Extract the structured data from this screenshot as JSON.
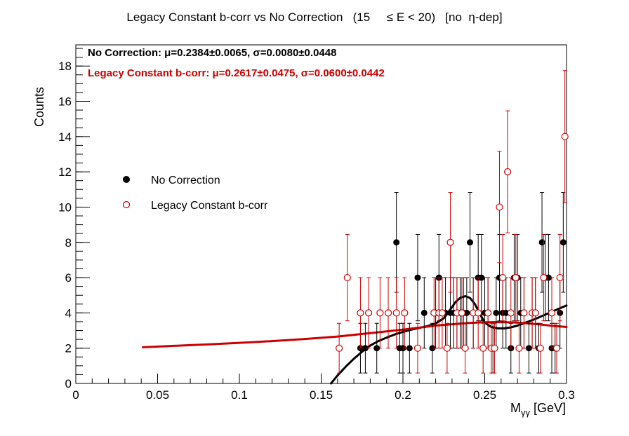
{
  "chart_data": {
    "type": "scatter",
    "title": "Legacy Constant b-corr vs No Correction   (15     ≤ E < 20)   [no  η-dep]",
    "xlabel": "Mγγ [GeV]",
    "xlabel_main": "M",
    "xlabel_sub": "γγ",
    "xlabel_unit": " [GeV]",
    "ylabel": "Counts",
    "xlim": [
      0,
      0.3
    ],
    "ylim": [
      0,
      19.2
    ],
    "grid": false,
    "legend_position": "middle-left",
    "x_ticks": [
      0,
      0.05,
      0.1,
      0.15,
      0.2,
      0.25,
      0.3
    ],
    "x_tick_labels": [
      "0",
      "0.05",
      "0.1",
      "0.15",
      "0.2",
      "0.25",
      "0.3"
    ],
    "y_ticks": [
      0,
      2,
      4,
      6,
      8,
      10,
      12,
      14,
      16,
      18
    ],
    "y_tick_labels": [
      "0",
      "2",
      "4",
      "6",
      "8",
      "10",
      "12",
      "14",
      "16",
      "18"
    ],
    "annotations": [
      {
        "text": "No Correction: μ=0.2384±0.0065, σ=0.0080±0.0448",
        "color": "#000000"
      },
      {
        "text": "Legacy Constant b-corr: μ=0.2617±0.0475, σ=0.0600±0.0442",
        "color": "#cc0000"
      }
    ],
    "series": [
      {
        "name": "No Correction",
        "color": "#000000",
        "marker": "filled-circle",
        "x": [
          0.174,
          0.177,
          0.184,
          0.196,
          0.198,
          0.2,
          0.204,
          0.209,
          0.213,
          0.218,
          0.22,
          0.222,
          0.226,
          0.229,
          0.231,
          0.233,
          0.235,
          0.237,
          0.239,
          0.241,
          0.243,
          0.246,
          0.248,
          0.25,
          0.252,
          0.255,
          0.257,
          0.259,
          0.261,
          0.263,
          0.266,
          0.268,
          0.27,
          0.272,
          0.274,
          0.277,
          0.279,
          0.281,
          0.283,
          0.285,
          0.287,
          0.289,
          0.291,
          0.293,
          0.296,
          0.298
        ],
        "y": [
          2,
          2,
          2,
          8,
          2,
          2,
          2,
          6,
          4,
          2,
          4,
          6,
          4,
          4,
          4,
          4,
          4,
          4,
          4,
          8,
          4,
          6,
          6,
          4,
          4,
          2,
          4,
          6,
          4,
          4,
          2,
          6,
          6,
          4,
          4,
          2,
          4,
          4,
          2,
          8,
          6,
          6,
          2,
          2,
          4,
          8
        ],
        "yerr": [
          1.41,
          1.41,
          1.41,
          2.83,
          1.41,
          1.41,
          1.41,
          2.45,
          2.0,
          1.41,
          2.0,
          2.45,
          2.0,
          2.0,
          2.0,
          2.0,
          2.0,
          2.0,
          2.0,
          2.83,
          2.0,
          2.45,
          2.45,
          2.0,
          2.0,
          1.41,
          2.0,
          2.45,
          2.0,
          2.0,
          1.41,
          2.45,
          2.45,
          2.0,
          2.0,
          1.41,
          2.0,
          2.0,
          1.41,
          2.83,
          2.45,
          2.45,
          1.41,
          1.41,
          2.0,
          2.83
        ]
      },
      {
        "name": "Legacy Constant b-corr",
        "color": "#cc0000",
        "marker": "open-circle",
        "x": [
          0.161,
          0.166,
          0.174,
          0.179,
          0.186,
          0.191,
          0.196,
          0.201,
          0.209,
          0.219,
          0.222,
          0.224,
          0.227,
          0.229,
          0.233,
          0.236,
          0.238,
          0.243,
          0.246,
          0.249,
          0.252,
          0.254,
          0.256,
          0.259,
          0.261,
          0.264,
          0.266,
          0.269,
          0.271,
          0.274,
          0.279,
          0.281,
          0.284,
          0.286,
          0.291,
          0.294,
          0.296,
          0.299
        ],
        "y": [
          2,
          6,
          4,
          4,
          4,
          4,
          4,
          4,
          2,
          4,
          4,
          4,
          2,
          8,
          4,
          4,
          2,
          4,
          4,
          2,
          4,
          2,
          2,
          10,
          6,
          12,
          4,
          6,
          2,
          4,
          4,
          4,
          2,
          6,
          4,
          2,
          6,
          14
        ],
        "yerr": [
          1.41,
          2.45,
          2.0,
          2.0,
          2.0,
          2.0,
          2.0,
          2.0,
          1.41,
          2.0,
          2.0,
          2.0,
          1.41,
          2.83,
          2.0,
          2.0,
          1.41,
          2.0,
          2.0,
          1.41,
          2.0,
          1.41,
          1.41,
          3.16,
          2.45,
          3.46,
          2.0,
          2.45,
          1.41,
          2.0,
          2.0,
          2.0,
          1.41,
          2.45,
          2.0,
          1.41,
          2.45,
          3.74
        ]
      }
    ],
    "fits": [
      {
        "name": "No Correction fit",
        "color": "#000000",
        "x": [
          0.156,
          0.16,
          0.165,
          0.17,
          0.175,
          0.18,
          0.185,
          0.19,
          0.195,
          0.2,
          0.205,
          0.21,
          0.215,
          0.22,
          0.225,
          0.229,
          0.232,
          0.235,
          0.238,
          0.241,
          0.244,
          0.247,
          0.25,
          0.254,
          0.258,
          0.262,
          0.266,
          0.27,
          0.275,
          0.28,
          0.285,
          0.29,
          0.295,
          0.3
        ],
        "y": [
          0.0,
          0.45,
          0.95,
          1.4,
          1.8,
          2.15,
          2.4,
          2.6,
          2.78,
          2.92,
          3.05,
          3.15,
          3.25,
          3.4,
          3.7,
          4.2,
          4.6,
          4.85,
          4.95,
          4.85,
          4.5,
          3.95,
          3.45,
          3.2,
          3.12,
          3.12,
          3.18,
          3.28,
          3.45,
          3.62,
          3.82,
          4.02,
          4.22,
          4.42
        ]
      },
      {
        "name": "Legacy Constant b-corr fit",
        "color": "#cc0000",
        "x": [
          0.041,
          0.06,
          0.08,
          0.1,
          0.12,
          0.14,
          0.16,
          0.18,
          0.2,
          0.22,
          0.24,
          0.25,
          0.26,
          0.27,
          0.28,
          0.29,
          0.3
        ],
        "y": [
          2.05,
          2.13,
          2.21,
          2.3,
          2.4,
          2.52,
          2.66,
          2.85,
          3.05,
          3.28,
          3.43,
          3.47,
          3.48,
          3.45,
          3.38,
          3.28,
          3.2
        ]
      }
    ]
  }
}
